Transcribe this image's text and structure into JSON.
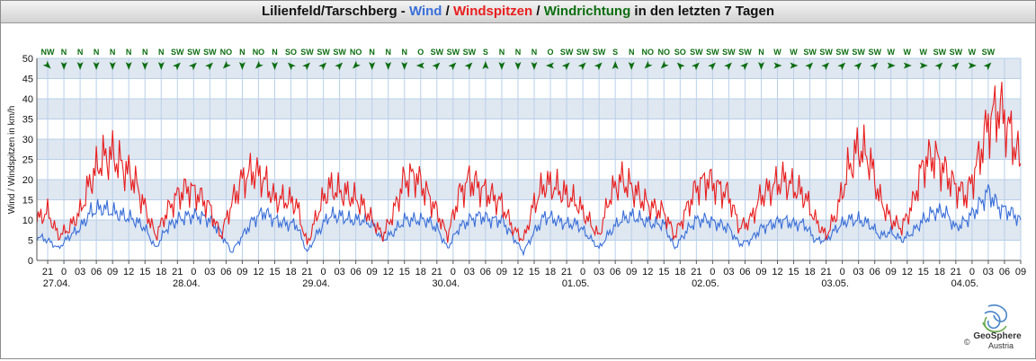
{
  "title": {
    "station": "Lilienfeld/Tarschberg",
    "sep1": " - ",
    "wind": "Wind",
    "sep2": " / ",
    "gusts": "Windspitzen",
    "sep3": " / ",
    "direction": "Windrichtung",
    "suffix": " in den letzten 7 Tagen"
  },
  "colors": {
    "wind": "#3a6fd8",
    "gusts": "#e81e1e",
    "direction": "#0d6e12",
    "band": "#dfe7f1",
    "grid": "#b9cfe8"
  },
  "logo": {
    "name": "GeoSphere",
    "country": "Austria",
    "copyright": "©"
  },
  "chart_data": {
    "type": "line",
    "title": "Lilienfeld/Tarschberg - Wind / Windspitzen / Windrichtung in den letzten 7 Tagen",
    "ylabel": "Wind / Windspitzen in km/h",
    "ylim": [
      0,
      50
    ],
    "yticks": [
      0,
      5,
      10,
      15,
      20,
      25,
      30,
      35,
      40,
      45,
      50
    ],
    "grid": true,
    "x_unit": "hours since 26.04. 21:00",
    "xlim": [
      -2,
      180
    ],
    "x_tick_labels": [
      "21",
      "0",
      "03",
      "06",
      "09",
      "12",
      "15",
      "18",
      "21",
      "0",
      "03",
      "06",
      "09",
      "12",
      "15",
      "18",
      "21",
      "0",
      "03",
      "06",
      "09",
      "12",
      "15",
      "18",
      "21",
      "0",
      "03",
      "06",
      "09",
      "12",
      "15",
      "18",
      "21",
      "0",
      "03",
      "06",
      "09",
      "12",
      "15",
      "18",
      "21",
      "0",
      "03",
      "06",
      "09",
      "12",
      "15",
      "18",
      "21",
      "0",
      "03",
      "06",
      "09",
      "12",
      "15",
      "18",
      "21",
      "0",
      "03",
      "06",
      "09"
    ],
    "date_labels": [
      "27.04.",
      "28.04.",
      "29.04.",
      "30.04.",
      "01.05.",
      "02.05.",
      "03.05.",
      "04.05."
    ],
    "wind_directions": [
      "NW",
      "N",
      "N",
      "N",
      "N",
      "N",
      "N",
      "N",
      "SW",
      "SW",
      "SW",
      "NO",
      "N",
      "NO",
      "N",
      "SO",
      "SW",
      "SW",
      "SW",
      "NO",
      "N",
      "N",
      "N",
      "O",
      "SW",
      "SW",
      "SW",
      "S",
      "N",
      "N",
      "N",
      "O",
      "SW",
      "SW",
      "SW",
      "S",
      "N",
      "NO",
      "NO",
      "SO",
      "SW",
      "SW",
      "SW",
      "SW",
      "N",
      "W",
      "W",
      "SW",
      "SW",
      "SW",
      "SW",
      "SW",
      "W",
      "W",
      "W",
      "SW",
      "SW",
      "W",
      "SW"
    ],
    "direction_x_hours": [
      0,
      3,
      6,
      9,
      12,
      15,
      18,
      21,
      24,
      27,
      30,
      33,
      36,
      39,
      42,
      45,
      48,
      51,
      54,
      57,
      60,
      63,
      66,
      69,
      72,
      75,
      78,
      81,
      84,
      87,
      90,
      93,
      96,
      99,
      102,
      105,
      108,
      111,
      114,
      117,
      120,
      123,
      126,
      129,
      132,
      135,
      138,
      141,
      144,
      147,
      150,
      153,
      156,
      159,
      162,
      165,
      168,
      171,
      174
    ],
    "series": [
      {
        "name": "Wind",
        "color": "#3a6fd8",
        "x": [
          -2,
          0,
          2,
          4,
          6,
          8,
          10,
          12,
          14,
          16,
          18,
          20,
          22,
          24,
          26,
          28,
          30,
          32,
          34,
          36,
          38,
          40,
          42,
          44,
          46,
          48,
          50,
          52,
          54,
          56,
          58,
          60,
          62,
          64,
          66,
          68,
          70,
          72,
          74,
          76,
          78,
          80,
          82,
          84,
          86,
          88,
          90,
          92,
          94,
          96,
          98,
          100,
          102,
          104,
          106,
          108,
          110,
          112,
          114,
          116,
          118,
          120,
          122,
          124,
          126,
          128,
          130,
          132,
          134,
          136,
          138,
          140,
          142,
          144,
          146,
          148,
          150,
          152,
          154,
          156,
          158,
          160,
          162,
          164,
          166,
          168,
          170,
          172,
          174,
          176,
          178,
          180
        ],
        "y": [
          6,
          5,
          3,
          6,
          8,
          12,
          13,
          12,
          11,
          10,
          8,
          3,
          8,
          10,
          11,
          11,
          10,
          7,
          2,
          6,
          10,
          12,
          10,
          9,
          9,
          2,
          7,
          11,
          11,
          10,
          10,
          9,
          5,
          7,
          10,
          10,
          10,
          8,
          3,
          8,
          10,
          11,
          10,
          10,
          6,
          2,
          7,
          11,
          10,
          9,
          9,
          6,
          3,
          7,
          10,
          11,
          10,
          9,
          9,
          3,
          7,
          10,
          10,
          9,
          8,
          4,
          5,
          8,
          9,
          10,
          9,
          9,
          5,
          5,
          8,
          10,
          10,
          9,
          6,
          7,
          5,
          7,
          10,
          12,
          12,
          8,
          10,
          13,
          17,
          13,
          12,
          10
        ]
      },
      {
        "name": "Windspitzen",
        "color": "#e81e1e",
        "x": [
          -2,
          0,
          2,
          4,
          6,
          8,
          10,
          12,
          14,
          16,
          18,
          20,
          22,
          24,
          26,
          28,
          30,
          32,
          34,
          36,
          38,
          40,
          42,
          44,
          46,
          48,
          50,
          52,
          54,
          56,
          58,
          60,
          62,
          64,
          66,
          68,
          70,
          72,
          74,
          76,
          78,
          80,
          82,
          84,
          86,
          88,
          90,
          92,
          94,
          96,
          98,
          100,
          102,
          104,
          106,
          108,
          110,
          112,
          114,
          116,
          118,
          120,
          122,
          124,
          126,
          128,
          130,
          132,
          134,
          136,
          138,
          140,
          142,
          144,
          146,
          148,
          150,
          152,
          154,
          156,
          158,
          160,
          162,
          164,
          166,
          168,
          170,
          172,
          174,
          176,
          178,
          180
        ],
        "y": [
          10,
          12,
          6,
          8,
          12,
          20,
          25,
          26,
          23,
          20,
          13,
          6,
          12,
          16,
          18,
          16,
          13,
          6,
          14,
          20,
          22,
          20,
          15,
          15,
          14,
          4,
          12,
          18,
          17,
          16,
          14,
          10,
          6,
          12,
          20,
          21,
          17,
          12,
          6,
          16,
          20,
          18,
          16,
          14,
          8,
          5,
          14,
          19,
          18,
          16,
          14,
          10,
          6,
          16,
          20,
          18,
          15,
          13,
          12,
          6,
          12,
          18,
          20,
          18,
          16,
          8,
          10,
          16,
          18,
          20,
          18,
          16,
          10,
          6,
          12,
          22,
          28,
          25,
          15,
          10,
          8,
          14,
          24,
          26,
          22,
          18,
          16,
          24,
          34,
          38,
          32,
          24
        ]
      }
    ]
  }
}
